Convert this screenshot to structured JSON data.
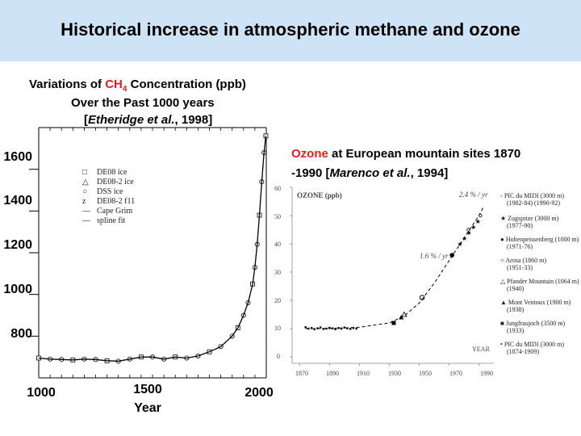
{
  "slide": {
    "title": "Historical increase in atmospheric methane and ozone"
  },
  "methane_caption": {
    "line1_prefix": "Variations of ",
    "line1_species": "CH",
    "line1_subscript": "4",
    "line1_suffix": " Concentration (ppb)",
    "line2": "Over the Past 1000 years",
    "line3_open": "[",
    "line3_author": "Etheridge et al.",
    "line3_rest": ", 1998]"
  },
  "ozone_caption": {
    "species": "Ozone",
    "line1_rest": " at European mountain sites 1870",
    "line2_prefix": "-1990  [",
    "line2_author": "Marenco et al.",
    "line2_rest": ", 1994]"
  },
  "chart_data": [
    {
      "type": "scatter",
      "title": "",
      "xlabel": "Year",
      "ylabel": "",
      "xlim": [
        1000,
        2000
      ],
      "ylim": [
        600,
        1800
      ],
      "x_ticks": [
        "1000",
        "1500",
        "2000"
      ],
      "y_ticks": [
        "1600",
        "1400",
        "1200",
        "1000",
        "800"
      ],
      "legend": {
        "placement": "top-left",
        "entries": [
          {
            "marker": "□",
            "label": "DE08 ice"
          },
          {
            "marker": "△",
            "label": "DE08-2 ice"
          },
          {
            "marker": "○",
            "label": "DSS ice"
          },
          {
            "marker": "z",
            "label": "DE08-2 f11"
          },
          {
            "marker": "—",
            "label": "Cape Grim"
          },
          {
            "marker": "—",
            "label": "spline fit"
          }
        ]
      },
      "series": [
        {
          "name": "spline fit",
          "x": [
            1000,
            1050,
            1100,
            1150,
            1200,
            1250,
            1300,
            1350,
            1400,
            1450,
            1500,
            1550,
            1600,
            1650,
            1700,
            1750,
            1800,
            1850,
            1875,
            1900,
            1920,
            1940,
            1950,
            1960,
            1970,
            1980,
            1990,
            1998
          ],
          "y": [
            695,
            690,
            688,
            686,
            690,
            688,
            682,
            680,
            690,
            700,
            700,
            690,
            700,
            695,
            705,
            725,
            750,
            800,
            840,
            900,
            960,
            1050,
            1130,
            1240,
            1380,
            1540,
            1680,
            1760
          ]
        }
      ]
    },
    {
      "type": "scatter",
      "title": "OZONE (ppb)",
      "xlabel": "YEAR",
      "ylabel": "",
      "xlim": [
        1865,
        2000
      ],
      "ylim": [
        0,
        60
      ],
      "x_ticks": [
        "1870",
        "1890",
        "1910",
        "1930",
        "1950",
        "1970",
        "1990"
      ],
      "y_ticks": [
        "60",
        "50",
        "40",
        "30",
        "20",
        "10",
        "0"
      ],
      "annotations": [
        "2.4 % / yr",
        "1.6 % / yr"
      ],
      "legend": {
        "placement": "right",
        "entries": [
          {
            "marker": "◦",
            "label": "PIC du MIDI (3000 m)",
            "period": "(1982-84) (1990-92)"
          },
          {
            "marker": "★",
            "label": "Zugspitze (3000 m)",
            "period": "(1977-90)"
          },
          {
            "marker": "●",
            "label": "Hohenpeissenberg (1000 m)",
            "period": "(1971-76)"
          },
          {
            "marker": "○",
            "label": "Arosa (1860 m)",
            "period": "(1951-33)"
          },
          {
            "marker": "△",
            "label": "Pfander Mountain (1064 m)",
            "period": "(1940)"
          },
          {
            "marker": "▲",
            "label": "Mont Ventoux (1900 m)",
            "period": "(1938)"
          },
          {
            "marker": "■",
            "label": "Jungfraujoch (3500 m)",
            "period": "(1933)"
          },
          {
            "marker": "•",
            "label": "PIC du MIDI (3000 m)",
            "period": "(1874-1909)"
          }
        ]
      },
      "series": [
        {
          "name": "PIC du MIDI 1874-1909",
          "x": [
            1874,
            1876,
            1878,
            1880,
            1882,
            1884,
            1886,
            1888,
            1890,
            1892,
            1894,
            1896,
            1898,
            1900,
            1902,
            1904,
            1906,
            1908
          ],
          "y": [
            10.5,
            10.0,
            10.2,
            9.8,
            10.1,
            10.4,
            9.9,
            10.0,
            10.3,
            10.1,
            9.8,
            10.2,
            10.0,
            10.4,
            10.1,
            9.9,
            10.2,
            10.0
          ]
        },
        {
          "name": "Jungfraujoch",
          "x": [
            1933
          ],
          "y": [
            12
          ]
        },
        {
          "name": "Mont Ventoux",
          "x": [
            1938
          ],
          "y": [
            14
          ]
        },
        {
          "name": "Pfander Mountain",
          "x": [
            1940
          ],
          "y": [
            15
          ]
        },
        {
          "name": "Arosa",
          "x": [
            1952
          ],
          "y": [
            21
          ]
        },
        {
          "name": "Hohenpeissenberg",
          "x": [
            1972
          ],
          "y": [
            36
          ]
        },
        {
          "name": "Zugspitze",
          "x": [
            1977,
            1980,
            1983,
            1986,
            1989
          ],
          "y": [
            40,
            42,
            44,
            46,
            48
          ]
        },
        {
          "name": "PIC du MIDI 1982-92",
          "x": [
            1983,
            1991
          ],
          "y": [
            45,
            50
          ]
        }
      ]
    }
  ]
}
